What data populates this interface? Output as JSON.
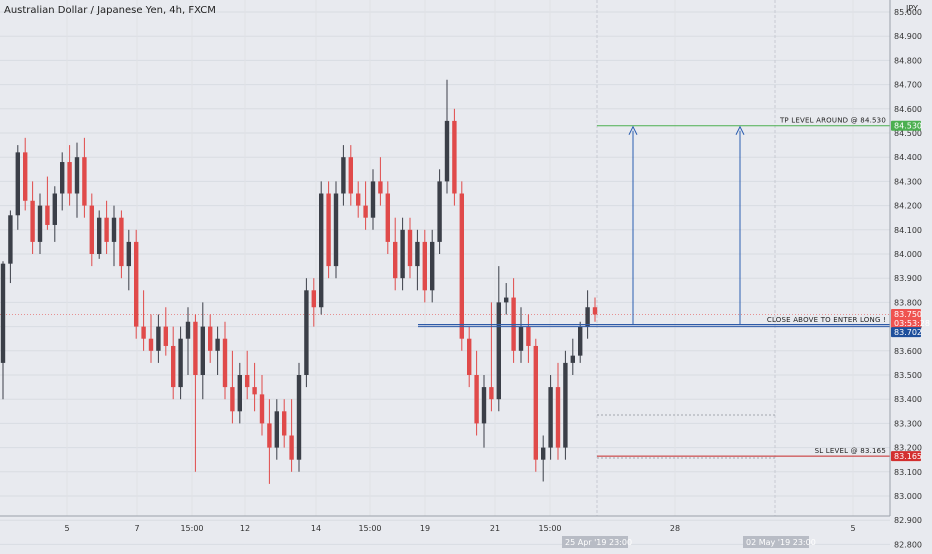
{
  "header": {
    "title": "Australian Dollar / Japanese Yen, 4h, FXCM"
  },
  "price_axis": {
    "currency": "JPY",
    "ticks": [
      "85.000",
      "84.900",
      "84.800",
      "84.700",
      "84.600",
      "84.500",
      "84.400",
      "84.300",
      "84.200",
      "84.100",
      "84.000",
      "83.900",
      "83.800",
      "83.700",
      "83.600",
      "83.500",
      "83.400",
      "83.300",
      "83.200",
      "83.100",
      "83.000",
      "82.900",
      "82.800"
    ]
  },
  "time_axis": {
    "ticks": [
      "5",
      "7",
      "15:00",
      "12",
      "14",
      "15:00",
      "19",
      "21",
      "15:00",
      "28",
      "5"
    ],
    "cursor_labels": [
      "25 Apr '19",
      "23:00",
      "02 May '19",
      "23:00"
    ]
  },
  "price_tags": {
    "tp": {
      "label": "84.530",
      "color": "#4caf50"
    },
    "current": {
      "label": "83.750",
      "countdown": "03:53:28",
      "color": "#ef5350"
    },
    "entry": {
      "label": "83.702",
      "color": "#1e4f9c"
    },
    "sl": {
      "label": "83.165",
      "color": "#d32f2f"
    }
  },
  "annotations": {
    "tp": "TP LEVEL AROUND @ 84.530",
    "entry": "CLOSE ABOVE TO ENTER LONG !",
    "sl": "SL LEVEL @ 83.165"
  },
  "colors": {
    "bull": "#3b3f48",
    "bear": "#e04a4a",
    "entry_line": "#2f5ba8",
    "tp_line": "#4caf50",
    "sl_line": "#c62828",
    "arrow": "#2a5db0"
  },
  "chart_data": {
    "type": "candlestick",
    "symbol": "AUD/JPY",
    "interval": "4h",
    "ylim": [
      82.75,
      85.05
    ],
    "levels": {
      "take_profit": 84.53,
      "entry": 83.702,
      "stop_loss": 83.165,
      "last": 83.75
    },
    "candles": [
      [
        83.55,
        83.97,
        83.4,
        83.96
      ],
      [
        83.96,
        84.18,
        83.88,
        84.16
      ],
      [
        84.16,
        84.45,
        84.1,
        84.42
      ],
      [
        84.42,
        84.48,
        84.18,
        84.22
      ],
      [
        84.22,
        84.3,
        84.0,
        84.05
      ],
      [
        84.05,
        84.25,
        84.0,
        84.2
      ],
      [
        84.2,
        84.32,
        84.1,
        84.12
      ],
      [
        84.12,
        84.28,
        84.05,
        84.25
      ],
      [
        84.25,
        84.42,
        84.18,
        84.38
      ],
      [
        84.38,
        84.45,
        84.2,
        84.25
      ],
      [
        84.25,
        84.46,
        84.15,
        84.4
      ],
      [
        84.4,
        84.48,
        84.15,
        84.2
      ],
      [
        84.2,
        84.25,
        83.95,
        84.0
      ],
      [
        84.0,
        84.18,
        83.98,
        84.15
      ],
      [
        84.15,
        84.22,
        84.0,
        84.05
      ],
      [
        84.05,
        84.2,
        83.95,
        84.15
      ],
      [
        84.15,
        84.18,
        83.9,
        83.95
      ],
      [
        83.95,
        84.1,
        83.85,
        84.05
      ],
      [
        84.05,
        84.1,
        83.65,
        83.7
      ],
      [
        83.7,
        83.85,
        83.6,
        83.65
      ],
      [
        83.65,
        83.75,
        83.55,
        83.6
      ],
      [
        83.6,
        83.75,
        83.55,
        83.7
      ],
      [
        83.7,
        83.78,
        83.58,
        83.62
      ],
      [
        83.62,
        83.7,
        83.4,
        83.45
      ],
      [
        83.45,
        83.7,
        83.4,
        83.65
      ],
      [
        83.65,
        83.78,
        83.5,
        83.72
      ],
      [
        83.72,
        83.75,
        83.1,
        83.5
      ],
      [
        83.5,
        83.8,
        83.4,
        83.7
      ],
      [
        83.7,
        83.75,
        83.55,
        83.6
      ],
      [
        83.6,
        83.7,
        83.5,
        83.65
      ],
      [
        83.65,
        83.72,
        83.4,
        83.45
      ],
      [
        83.45,
        83.6,
        83.3,
        83.35
      ],
      [
        83.35,
        83.55,
        83.3,
        83.5
      ],
      [
        83.5,
        83.6,
        83.4,
        83.45
      ],
      [
        83.45,
        83.55,
        83.35,
        83.42
      ],
      [
        83.42,
        83.5,
        83.25,
        83.3
      ],
      [
        83.3,
        83.4,
        83.05,
        83.2
      ],
      [
        83.2,
        83.4,
        83.15,
        83.35
      ],
      [
        83.35,
        83.4,
        83.2,
        83.25
      ],
      [
        83.25,
        83.4,
        83.1,
        83.15
      ],
      [
        83.15,
        83.55,
        83.1,
        83.5
      ],
      [
        83.5,
        83.9,
        83.45,
        83.85
      ],
      [
        83.85,
        83.9,
        83.7,
        83.78
      ],
      [
        83.78,
        84.3,
        83.75,
        84.25
      ],
      [
        84.25,
        84.3,
        83.9,
        83.95
      ],
      [
        83.95,
        84.3,
        83.9,
        84.25
      ],
      [
        84.25,
        84.45,
        84.2,
        84.4
      ],
      [
        84.4,
        84.45,
        84.2,
        84.25
      ],
      [
        84.25,
        84.3,
        84.15,
        84.2
      ],
      [
        84.2,
        84.3,
        84.1,
        84.15
      ],
      [
        84.15,
        84.35,
        84.1,
        84.3
      ],
      [
        84.3,
        84.4,
        84.2,
        84.25
      ],
      [
        84.25,
        84.3,
        84.0,
        84.05
      ],
      [
        84.05,
        84.15,
        83.85,
        83.9
      ],
      [
        83.9,
        84.15,
        83.85,
        84.1
      ],
      [
        84.1,
        84.15,
        83.9,
        83.95
      ],
      [
        83.95,
        84.1,
        83.85,
        84.05
      ],
      [
        84.05,
        84.1,
        83.8,
        83.85
      ],
      [
        83.85,
        84.1,
        83.8,
        84.05
      ],
      [
        84.05,
        84.35,
        84.0,
        84.3
      ],
      [
        84.3,
        84.72,
        84.25,
        84.55
      ],
      [
        84.55,
        84.6,
        84.2,
        84.25
      ],
      [
        84.25,
        84.3,
        83.6,
        83.65
      ],
      [
        83.65,
        83.7,
        83.45,
        83.5
      ],
      [
        83.5,
        83.6,
        83.25,
        83.3
      ],
      [
        83.3,
        83.5,
        83.2,
        83.45
      ],
      [
        83.45,
        83.8,
        83.35,
        83.4
      ],
      [
        83.4,
        83.95,
        83.35,
        83.8
      ],
      [
        83.8,
        83.88,
        83.75,
        83.82
      ],
      [
        83.82,
        83.9,
        83.55,
        83.6
      ],
      [
        83.6,
        83.78,
        83.55,
        83.7
      ],
      [
        83.7,
        83.75,
        83.55,
        83.62
      ],
      [
        83.62,
        83.65,
        83.1,
        83.15
      ],
      [
        83.15,
        83.25,
        83.06,
        83.2
      ],
      [
        83.2,
        83.5,
        83.15,
        83.45
      ],
      [
        83.45,
        83.55,
        83.15,
        83.2
      ],
      [
        83.2,
        83.6,
        83.15,
        83.55
      ],
      [
        83.55,
        83.65,
        83.5,
        83.58
      ],
      [
        83.58,
        83.72,
        83.55,
        83.7
      ],
      [
        83.7,
        83.85,
        83.65,
        83.78
      ],
      [
        83.78,
        83.82,
        83.72,
        83.75
      ]
    ]
  }
}
